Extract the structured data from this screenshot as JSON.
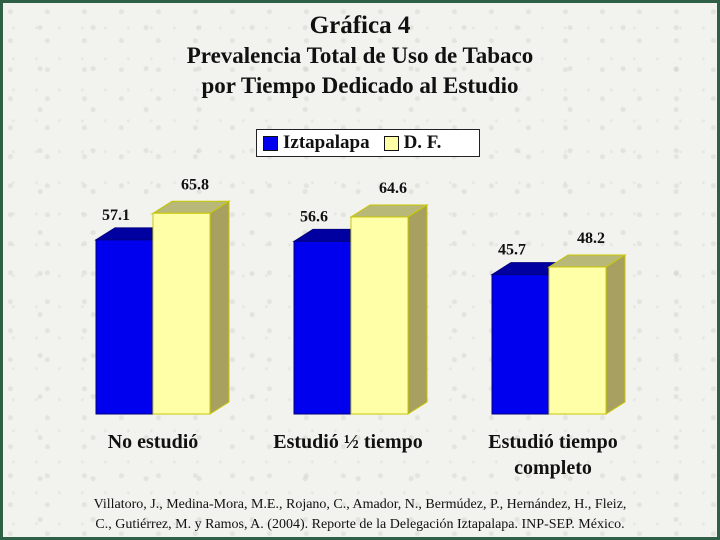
{
  "title": {
    "line1": "Gráfica 4",
    "line2": "Prevalencia Total de Uso de Tabaco",
    "line3": "por Tiempo Dedicado al Estudio"
  },
  "colors": {
    "Iztapalapa": "#0000ee",
    "D. F.": "#ffffa8",
    "frame": "#2f5f45"
  },
  "chart_data": {
    "type": "bar",
    "categories": [
      "No estudió",
      "Estudió ½ tiempo",
      "Estudió tiempo completo"
    ],
    "series": [
      {
        "name": "Iztapalapa",
        "values": [
          57.1,
          56.6,
          45.7
        ],
        "labels": [
          "57.1",
          "56.6",
          "45.7"
        ]
      },
      {
        "name": "D. F.",
        "values": [
          65.8,
          64.6,
          48.2
        ],
        "labels": [
          "65.8",
          "64.6",
          "48.2"
        ]
      }
    ],
    "ylim": [
      0,
      100
    ],
    "grid": false,
    "legend": "top-center",
    "three_d": true
  },
  "category_lines": [
    [
      "No estudió"
    ],
    [
      "Estudió ½ tiempo"
    ],
    [
      "Estudió tiempo",
      "completo"
    ]
  ],
  "source": {
    "line1": "Villatoro, J., Medina-Mora, M.E., Rojano, C., Amador, N., Bermúdez, P., Hernández, H., Fleiz,",
    "line2": "C., Gutiérrez, M. y Ramos, A. (2004). Reporte de la Delegación Iztapalapa. INP-SEP. México."
  }
}
